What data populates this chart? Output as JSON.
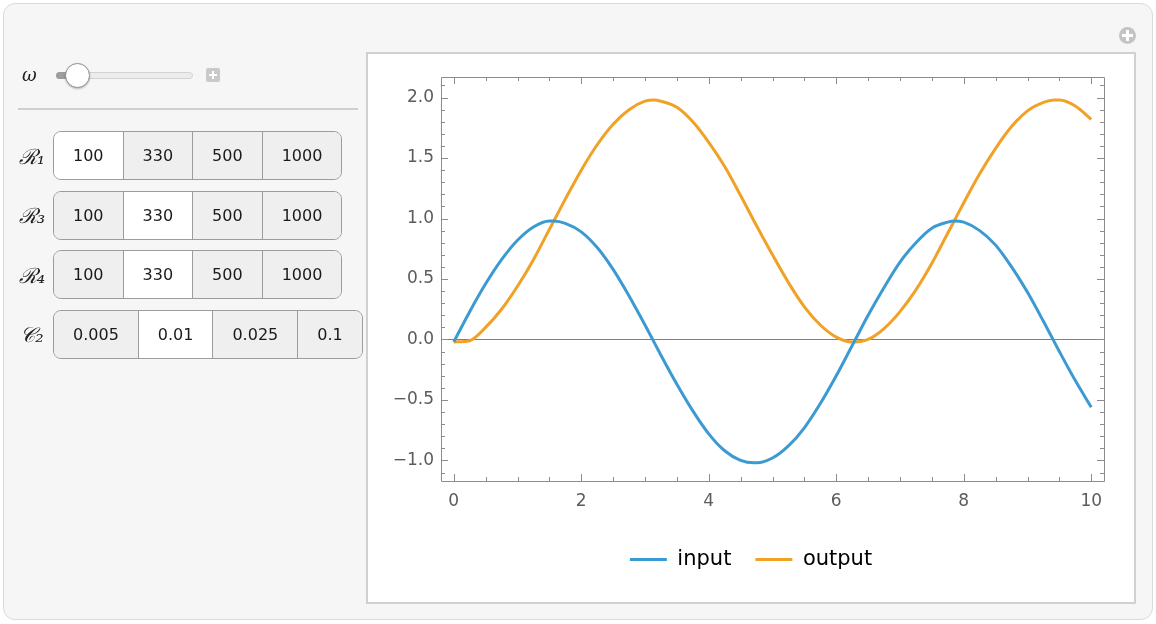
{
  "chart_data": [
    {
      "type": "other",
      "annotations": [
        "ω"
      ],
      "y_categories": [
        "ℛ₁",
        "ℛ₃",
        "ℛ₄",
        "𝒞₂"
      ],
      "cell_labels": [
        [
          "100",
          "330",
          "500",
          "1000"
        ],
        [
          "100",
          "330",
          "500",
          "1000"
        ],
        [
          "100",
          "330",
          "500",
          "1000"
        ],
        [
          "0.005",
          "0.01",
          "0.025",
          "0.1"
        ]
      ],
      "colors": [
        "#ffffff",
        "#efefef",
        "#efefef",
        "#efefef",
        "#efefef",
        "#ffffff",
        "#efefef",
        "#efefef",
        "#efefef",
        "#ffffff",
        "#efefef",
        "#efefef",
        "#efefef",
        "#ffffff",
        "#efefef",
        "#efefef"
      ]
    },
    {
      "type": "line",
      "x": [
        0,
        0.25,
        0.5,
        0.75,
        1,
        1.25,
        1.5,
        1.57,
        1.75,
        2,
        2.25,
        2.5,
        2.75,
        3,
        3.14,
        3.25,
        3.5,
        3.75,
        4,
        4.25,
        4.5,
        4.71,
        4.75,
        5,
        5.25,
        5.5,
        5.75,
        6,
        6.25,
        6.28,
        6.5,
        6.75,
        7,
        7.25,
        7.5,
        7.75,
        7.85,
        8,
        8.25,
        8.5,
        8.75,
        9,
        9.25,
        9.42,
        9.5,
        9.75,
        10
      ],
      "series": [
        {
          "name": "input",
          "color": "#3b9ad2",
          "values": [
            -0.02,
            0.23,
            0.46,
            0.66,
            0.82,
            0.93,
            0.98,
            0.98,
            0.96,
            0.89,
            0.76,
            0.58,
            0.36,
            0.12,
            -0.02,
            -0.13,
            -0.37,
            -0.59,
            -0.78,
            -0.92,
            -1.0,
            -1.02,
            -1.02,
            -0.98,
            -0.88,
            -0.73,
            -0.53,
            -0.3,
            -0.05,
            -0.02,
            0.2,
            0.43,
            0.64,
            0.8,
            0.92,
            0.97,
            0.98,
            0.97,
            0.9,
            0.78,
            0.6,
            0.39,
            0.15,
            -0.02,
            -0.1,
            -0.34,
            -0.56
          ]
        },
        {
          "name": "output",
          "color": "#f0a126",
          "values": [
            -0.02,
            -0.01,
            0.1,
            0.25,
            0.44,
            0.66,
            0.91,
            0.98,
            1.16,
            1.4,
            1.61,
            1.78,
            1.9,
            1.97,
            1.98,
            1.97,
            1.92,
            1.8,
            1.63,
            1.43,
            1.19,
            0.98,
            0.94,
            0.7,
            0.47,
            0.27,
            0.12,
            0.02,
            -0.02,
            -0.02,
            0.0,
            0.09,
            0.23,
            0.41,
            0.63,
            0.88,
            0.98,
            1.13,
            1.37,
            1.58,
            1.76,
            1.89,
            1.96,
            1.98,
            1.98,
            1.93,
            1.82
          ]
        }
      ],
      "xlim": [
        -0.2,
        10.2
      ],
      "xticks": [
        0,
        {
          "value": 0.5,
          "label": null
        },
        {
          "value": 1,
          "label": null
        },
        {
          "value": 1.5,
          "label": null
        },
        2,
        {
          "value": 2.5,
          "label": null
        },
        {
          "value": 3,
          "label": null
        },
        {
          "value": 3.5,
          "label": null
        },
        4,
        {
          "value": 4.5,
          "label": null
        },
        {
          "value": 5,
          "label": null
        },
        {
          "value": 5.5,
          "label": null
        },
        6,
        {
          "value": 6.5,
          "label": null
        },
        {
          "value": 7,
          "label": null
        },
        {
          "value": 7.5,
          "label": null
        },
        8,
        {
          "value": 8.5,
          "label": null
        },
        {
          "value": 9,
          "label": null
        },
        {
          "value": 9.5,
          "label": null
        },
        10
      ],
      "ylim": [
        -1.17,
        2.17
      ],
      "yticks": [
        {
          "value": -1.1,
          "label": null
        },
        {
          "value": -1,
          "label": "−1.0"
        },
        {
          "value": -0.9,
          "label": null
        },
        {
          "value": -0.8,
          "label": null
        },
        {
          "value": -0.7,
          "label": null
        },
        {
          "value": -0.6,
          "label": null
        },
        {
          "value": -0.5,
          "label": "−0.5"
        },
        {
          "value": -0.4,
          "label": null
        },
        {
          "value": -0.3,
          "label": null
        },
        {
          "value": -0.2,
          "label": null
        },
        {
          "value": -0.1,
          "label": null
        },
        {
          "value": 0,
          "label": "0.0"
        },
        {
          "value": 0.1,
          "label": null
        },
        {
          "value": 0.2,
          "label": null
        },
        {
          "value": 0.3,
          "label": null
        },
        {
          "value": 0.4,
          "label": null
        },
        0.5,
        {
          "value": 0.6,
          "label": null
        },
        {
          "value": 0.7,
          "label": null
        },
        {
          "value": 0.8,
          "label": null
        },
        {
          "value": 0.9,
          "label": null
        },
        {
          "value": 1,
          "label": "1.0"
        },
        {
          "value": 1.1,
          "label": null
        },
        {
          "value": 1.2,
          "label": null
        },
        {
          "value": 1.3,
          "label": null
        },
        {
          "value": 1.4,
          "label": null
        },
        1.5,
        {
          "value": 1.6,
          "label": null
        },
        {
          "value": 1.7,
          "label": null
        },
        {
          "value": 1.8,
          "label": null
        },
        {
          "value": 1.9,
          "label": null
        },
        {
          "value": 2,
          "label": "2.0"
        },
        {
          "value": 2.1,
          "label": null
        }
      ],
      "ref_lines": [
        {
          "axis": "y",
          "value": 0,
          "color": "#7f7f7f"
        }
      ],
      "legend": "bottom",
      "grid": false,
      "marker": "none",
      "line_style": "solid"
    }
  ]
}
